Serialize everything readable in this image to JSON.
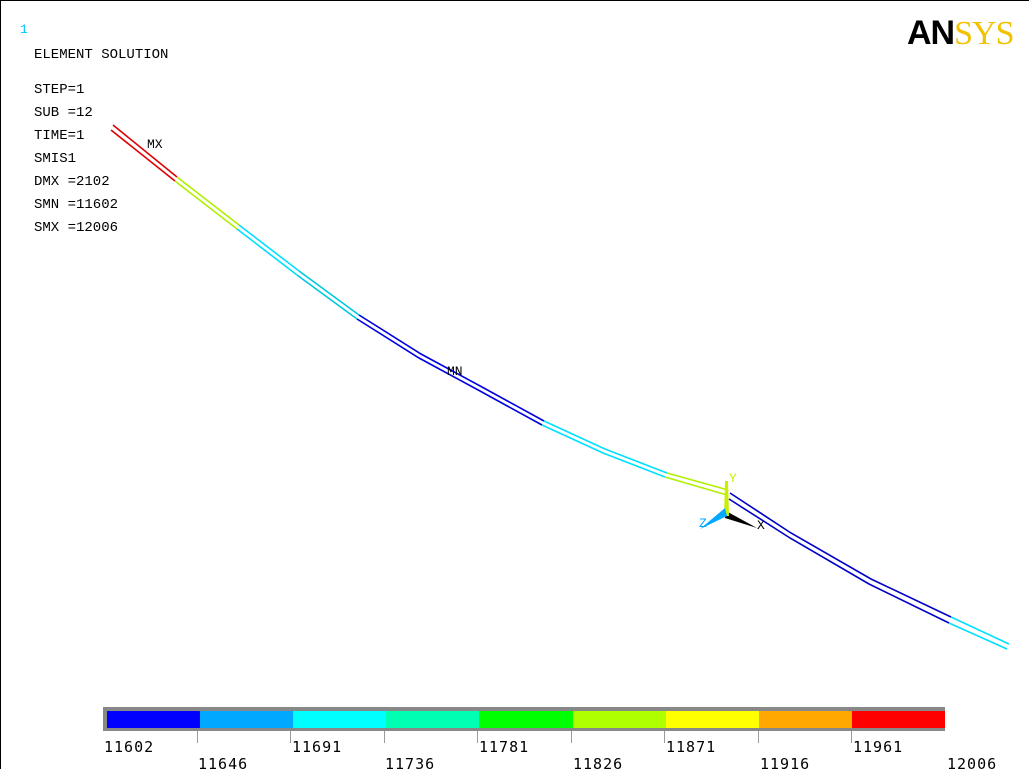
{
  "window_number": "1",
  "brand": {
    "part1": "AN",
    "part2": "SYS"
  },
  "info": {
    "title": "ELEMENT SOLUTION",
    "lines": [
      "STEP=1",
      "SUB =12",
      "TIME=1",
      "SMIS1",
      "DMX =2102",
      "SMN =11602",
      "SMX =12006"
    ]
  },
  "annotations": {
    "max": "MX",
    "min": "MN"
  },
  "triad": {
    "x_label": "X",
    "y_label": "Y",
    "z_label": "Z"
  },
  "legend": {
    "colors": [
      "#0000ff",
      "#00a8ff",
      "#00ffff",
      "#00ffb0",
      "#00ff00",
      "#b0ff00",
      "#ffff00",
      "#ffa800",
      "#ff0000"
    ],
    "top_labels": [
      "11602",
      "11691",
      "11781",
      "11871",
      "11961"
    ],
    "bottom_labels": [
      "11646",
      "11736",
      "11826",
      "11916",
      "12006"
    ]
  },
  "colors": {
    "red": "#e00000",
    "yellow_green": "#b0f000",
    "cyan": "#00e0ff",
    "teal": "#00c8e0",
    "blue": "#0000e0",
    "dark_blue": "#0000c8",
    "triad_x": "#000000",
    "triad_y": "#c8f000",
    "triad_z": "#00a8ff"
  }
}
